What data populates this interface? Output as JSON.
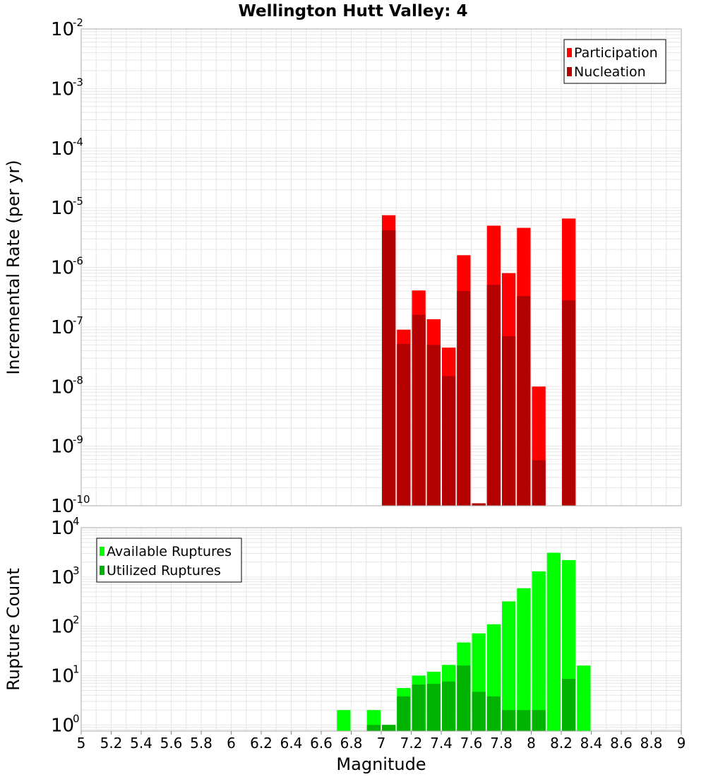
{
  "title": "Wellington Hutt Valley: 4",
  "xlabel": "Magnitude",
  "x_ticks": [
    "5",
    "5.2",
    "5.4",
    "5.6",
    "5.8",
    "6",
    "6.2",
    "6.4",
    "6.6",
    "6.8",
    "7",
    "7.2",
    "7.4",
    "7.6",
    "7.8",
    "8",
    "8.2",
    "8.4",
    "8.6",
    "8.8",
    "9"
  ],
  "colors": {
    "participation": "#ff0000",
    "nucleation": "#b30000",
    "available": "#00ff00",
    "utilized": "#00b300",
    "grid": "#e6e6e6",
    "frame": "#aaaaaa"
  },
  "chart_data": [
    {
      "type": "bar",
      "title": "Wellington Hutt Valley: 4",
      "xlabel": "Magnitude",
      "ylabel": "Incremental Rate (per yr)",
      "yscale": "log",
      "xlim": [
        5,
        9
      ],
      "ylim": [
        1e-10,
        0.01
      ],
      "y_tick_labels": [
        {
          "base": "10",
          "exp": "-10"
        },
        {
          "base": "10",
          "exp": "-9"
        },
        {
          "base": "10",
          "exp": "-8"
        },
        {
          "base": "10",
          "exp": "-7"
        },
        {
          "base": "10",
          "exp": "-6"
        },
        {
          "base": "10",
          "exp": "-5"
        },
        {
          "base": "10",
          "exp": "-4"
        },
        {
          "base": "10",
          "exp": "-3"
        },
        {
          "base": "10",
          "exp": "-2"
        }
      ],
      "legend_position": "top-right",
      "grid": true,
      "series": [
        {
          "name": "Participation",
          "x": [
            7.05,
            7.15,
            7.25,
            7.35,
            7.45,
            7.55,
            7.65,
            7.75,
            7.85,
            7.95,
            8.05,
            8.25
          ],
          "values": [
            7.5e-06,
            9e-08,
            4.1e-07,
            1.35e-07,
            4.5e-08,
            1.6e-06,
            1.1e-10,
            5e-06,
            8e-07,
            4.6e-06,
            1e-08,
            6.6e-06
          ]
        },
        {
          "name": "Nucleation",
          "x": [
            7.05,
            7.15,
            7.25,
            7.35,
            7.45,
            7.55,
            7.65,
            7.75,
            7.85,
            7.95,
            8.05,
            8.25
          ],
          "values": [
            4.2e-06,
            5.2e-08,
            1.6e-07,
            5e-08,
            1.5e-08,
            4e-07,
            1.1e-10,
            5.1e-07,
            7e-08,
            3.3e-07,
            5.8e-10,
            2.8e-07
          ]
        }
      ]
    },
    {
      "type": "bar",
      "xlabel": "Magnitude",
      "ylabel": "Rupture Count",
      "yscale": "log",
      "xlim": [
        5,
        9
      ],
      "ylim": [
        0.75,
        10000
      ],
      "y_tick_labels": [
        {
          "base": "10",
          "exp": "0"
        },
        {
          "base": "10",
          "exp": "1"
        },
        {
          "base": "10",
          "exp": "2"
        },
        {
          "base": "10",
          "exp": "3"
        },
        {
          "base": "10",
          "exp": "4"
        }
      ],
      "legend_position": "top-left",
      "grid": true,
      "series": [
        {
          "name": "Available Ruptures",
          "x": [
            6.75,
            6.95,
            7.05,
            7.15,
            7.25,
            7.35,
            7.45,
            7.55,
            7.65,
            7.75,
            7.85,
            7.95,
            8.05,
            8.15,
            8.25,
            8.35
          ],
          "values": [
            2,
            2,
            1,
            5.6,
            10,
            12,
            16.5,
            47,
            72,
            110,
            320,
            590,
            1300,
            3100,
            2200,
            16
          ]
        },
        {
          "name": "Utilized Ruptures",
          "x": [
            6.75,
            6.95,
            7.05,
            7.15,
            7.25,
            7.35,
            7.45,
            7.55,
            7.65,
            7.75,
            7.85,
            7.95,
            8.05,
            8.15,
            8.25,
            8.35
          ],
          "values": [
            0,
            1,
            1,
            3.8,
            6.6,
            6.8,
            7.6,
            16,
            4.7,
            3.8,
            2,
            2,
            2,
            0,
            8.6,
            0
          ]
        }
      ]
    }
  ]
}
